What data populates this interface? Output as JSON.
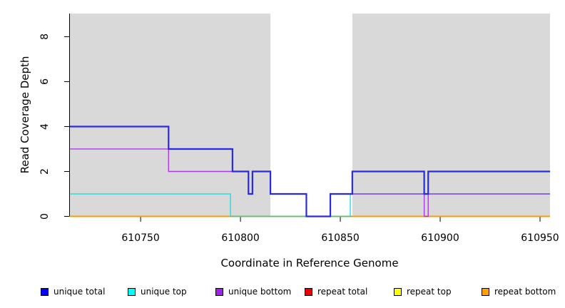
{
  "chart_data": {
    "type": "line",
    "subtype": "step",
    "title": "",
    "xlabel": "Coordinate in Reference Genome",
    "ylabel": "Read Coverage Depth",
    "xlim": [
      610714.6,
      610955.0
    ],
    "ylim": [
      0,
      9.03
    ],
    "xticks": [
      610750,
      610800,
      610850,
      610900,
      610950
    ],
    "yticks": [
      0,
      2,
      4,
      6,
      8
    ],
    "grid": false,
    "legend_position": "bottom",
    "plot_background": "#ffffff",
    "highlight_regions": [
      {
        "name": "shaded-region-left",
        "x0": 610714.6,
        "x1": 610815,
        "color": "#d9d9d9"
      },
      {
        "name": "shaded-region-right",
        "x0": 610856,
        "x1": 610955.0,
        "color": "#d9d9d9"
      }
    ],
    "series": [
      {
        "id": "repeat_total",
        "name": "repeat total",
        "color": "#e00000",
        "points": [
          [
            610714.6,
            0
          ],
          [
            610955,
            0
          ]
        ]
      },
      {
        "id": "repeat_top",
        "name": "repeat top",
        "color": "#ffff00",
        "points": [
          [
            610714.6,
            0
          ],
          [
            610955,
            0
          ]
        ]
      },
      {
        "id": "repeat_bottom",
        "name": "repeat bottom",
        "color": "#ff9800",
        "points": [
          [
            610714.6,
            0
          ],
          [
            610955,
            0
          ]
        ]
      },
      {
        "id": "gap_zero_segment",
        "name": "zero segment (green)",
        "color": "#6abf6a",
        "points": [
          [
            610795,
            0
          ],
          [
            610856,
            0
          ]
        ]
      },
      {
        "id": "unique_top",
        "name": "unique top",
        "color": "#00dcdc",
        "points": [
          [
            610714.6,
            1
          ],
          [
            610795,
            1
          ],
          [
            610795,
            0
          ],
          [
            610855,
            0
          ],
          [
            610855,
            1
          ],
          [
            610955,
            1
          ]
        ]
      },
      {
        "id": "unique_bottom",
        "name": "unique bottom",
        "color": "#a020f0",
        "points": [
          [
            610714.6,
            3
          ],
          [
            610764,
            3
          ],
          [
            610764,
            2
          ],
          [
            610804,
            2
          ],
          [
            610804,
            1
          ],
          [
            610806,
            1
          ],
          [
            610806,
            2
          ],
          [
            610815,
            2
          ],
          [
            610815,
            1
          ],
          [
            610833,
            1
          ],
          [
            610833,
            0
          ],
          [
            610845,
            0
          ],
          [
            610845,
            1
          ],
          [
            610892,
            1
          ],
          [
            610892,
            0
          ],
          [
            610894,
            0
          ],
          [
            610894,
            1
          ],
          [
            610955,
            1
          ]
        ]
      },
      {
        "id": "unique_total",
        "name": "unique total",
        "color": "#2a2ae0",
        "points": [
          [
            610714.6,
            4
          ],
          [
            610764,
            4
          ],
          [
            610764,
            3
          ],
          [
            610796,
            3
          ],
          [
            610796,
            2
          ],
          [
            610804,
            2
          ],
          [
            610804,
            1
          ],
          [
            610806,
            1
          ],
          [
            610806,
            2
          ],
          [
            610815,
            2
          ],
          [
            610815,
            1
          ],
          [
            610833,
            1
          ],
          [
            610833,
            0
          ],
          [
            610845,
            0
          ],
          [
            610845,
            1
          ],
          [
            610856,
            1
          ],
          [
            610856,
            2
          ],
          [
            610892,
            2
          ],
          [
            610892,
            1
          ],
          [
            610894,
            1
          ],
          [
            610894,
            2
          ],
          [
            610955,
            2
          ]
        ]
      }
    ]
  },
  "legend": {
    "items": [
      {
        "label": "unique total",
        "color": "#0000ff"
      },
      {
        "label": "unique top",
        "color": "#00ffff"
      },
      {
        "label": "unique bottom",
        "color": "#a020f0"
      },
      {
        "label": "repeat total",
        "color": "#ee0000"
      },
      {
        "label": "repeat top",
        "color": "#ffff00"
      },
      {
        "label": "repeat bottom",
        "color": "#ffa200"
      }
    ]
  }
}
